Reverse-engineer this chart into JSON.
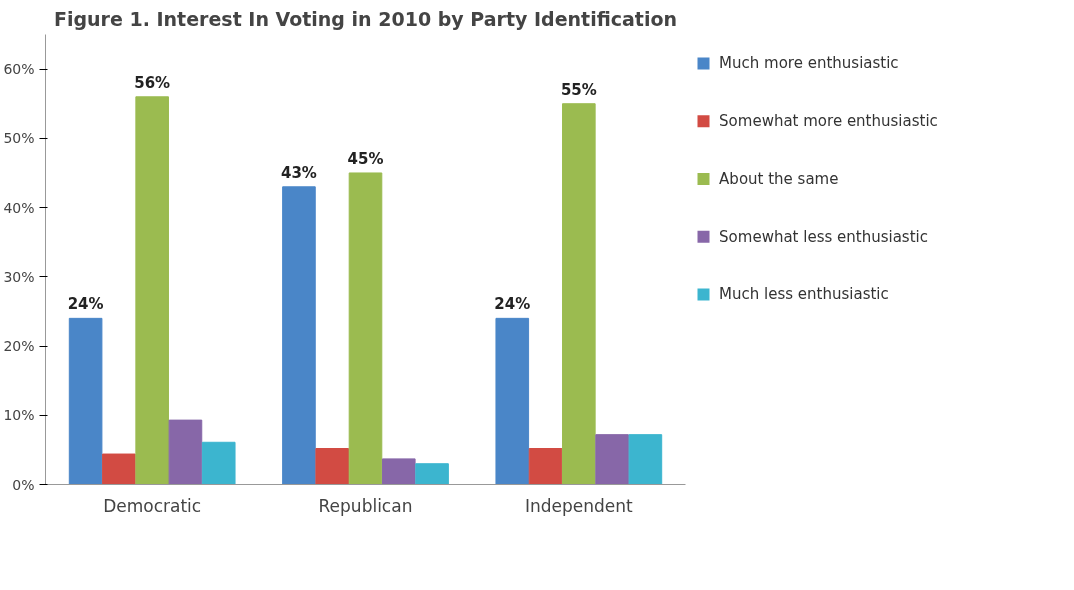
{
  "chart_data": {
    "type": "bar",
    "title": "Figure 1. Interest In Voting in 2010 by Party Identification",
    "categories": [
      "Democratic",
      "Republican",
      "Independent"
    ],
    "series": [
      {
        "name": "Much more enthusiastic",
        "color": "#4a86c8",
        "values": [
          24,
          43,
          24
        ],
        "value_labels": [
          "24%",
          "43%",
          "24%"
        ]
      },
      {
        "name": "Somewhat more enthusiastic",
        "color": "#d24b43",
        "values": [
          4.4,
          5.2,
          5.2
        ]
      },
      {
        "name": "About the same",
        "color": "#9bbb50",
        "values": [
          56,
          45,
          55
        ],
        "value_labels": [
          "56%",
          "45%",
          "55%"
        ]
      },
      {
        "name": "Somewhat less enthusiastic",
        "color": "#8767a8",
        "values": [
          9.3,
          3.7,
          7.2
        ]
      },
      {
        "name": "Much less enthusiastic",
        "color": "#3cb5cf",
        "values": [
          6.1,
          3.0,
          7.2
        ]
      }
    ],
    "ylim": [
      0,
      65
    ],
    "yticks": [
      {
        "value": 0,
        "label": "0%"
      },
      {
        "value": 10,
        "label": "10%"
      },
      {
        "value": 20,
        "label": "20%"
      },
      {
        "value": 30,
        "label": "30%"
      },
      {
        "value": 40,
        "label": "40%"
      },
      {
        "value": 50,
        "label": "50%"
      },
      {
        "value": 60,
        "label": "60%"
      }
    ],
    "grid": false,
    "legend": "right"
  }
}
